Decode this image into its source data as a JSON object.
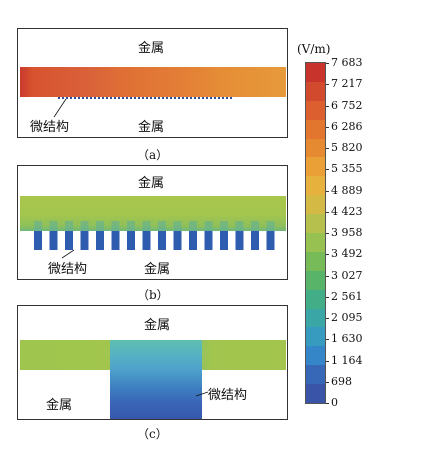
{
  "labels": {
    "metal": "金属",
    "microstructure": "微结构"
  },
  "captions": {
    "a": "（a）",
    "b": "（b）",
    "c": "（c）"
  },
  "colorbar": {
    "unit": "(V/m)",
    "ticks": [
      "7 683",
      "7 217",
      "6 752",
      "6 286",
      "5 820",
      "5 355",
      "4 889",
      "4 423",
      "3 958",
      "3 492",
      "3 027",
      "2 561",
      "2 095",
      "1 630",
      "1 164",
      "698",
      "0"
    ],
    "colors": [
      "#c8342c",
      "#d24a2e",
      "#db5f2f",
      "#e2762f",
      "#e68a32",
      "#eaa036",
      "#e6b13c",
      "#d4ba45",
      "#b6c04c",
      "#97c251",
      "#76bb58",
      "#57b468",
      "#42ad86",
      "#3aa6a5",
      "#379bbf",
      "#3585c9",
      "#3768b8",
      "#3a55a8"
    ],
    "color_top": "#c8342c",
    "color_bottom": "#3a4ea3"
  },
  "panel_colors": {
    "a_band": "#d9623b",
    "b_band": "#a6c64d",
    "b_ridges": "#2e5db0",
    "c_band": "#9fc54f",
    "c_microstructure": "#3a67b8"
  }
}
